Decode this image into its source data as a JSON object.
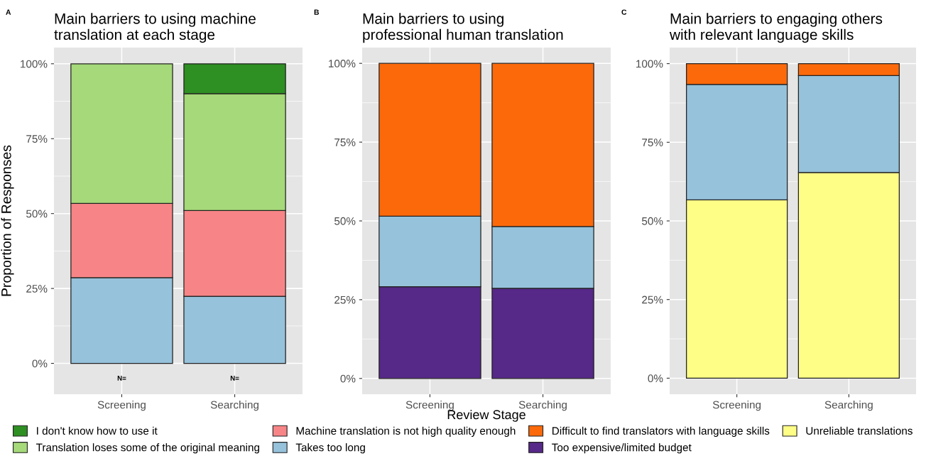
{
  "chart_data": [
    {
      "type": "bar",
      "stacked": true,
      "title": "Main barriers to using machine\ntranslation at each stage",
      "ylabel": "Proportion of Responses",
      "categories": [
        "Screening",
        "Searching"
      ],
      "ylim": [
        -10.3,
        105.4
      ],
      "yticks": [
        {
          "value": 0,
          "label": "0%"
        },
        {
          "value": 25,
          "label": "25%"
        },
        {
          "value": 50,
          "label": "50%"
        },
        {
          "value": 75,
          "label": "75%"
        },
        {
          "value": 100,
          "label": "100%"
        }
      ],
      "grid": true,
      "legend": "bottom",
      "annotations": [
        "A",
        "N=",
        "N="
      ],
      "series": [
        {
          "name": "Takes too long",
          "color": "#96c2db",
          "values": [
            28.6,
            22.4
          ]
        },
        {
          "name": "Machine translation is not high quality enough",
          "color": "#f78587",
          "values": [
            24.8,
            28.6
          ]
        },
        {
          "name": "Translation loses some of the original meaning",
          "color": "#a6d97a",
          "values": [
            46.6,
            39.0
          ]
        },
        {
          "name": "I don't know how to use it",
          "color": "#2e8f22",
          "values": [
            null,
            10.0
          ]
        }
      ]
    },
    {
      "type": "bar",
      "stacked": true,
      "title": "Main barriers to using\nprofessional human translation",
      "xlabel": "Review Stage",
      "categories": [
        "Screening",
        "Searching"
      ],
      "ylim": [
        -5,
        105
      ],
      "yticks": [
        {
          "value": 0,
          "label": "0%"
        },
        {
          "value": 25,
          "label": "25%"
        },
        {
          "value": 50,
          "label": "50%"
        },
        {
          "value": 75,
          "label": "75%"
        },
        {
          "value": 100,
          "label": "100%"
        }
      ],
      "grid": true,
      "legend": "bottom",
      "annotations": [
        "B"
      ],
      "series": [
        {
          "name": "Too expensive/limited budget",
          "color": "#562888",
          "values": [
            29.1,
            28.6
          ]
        },
        {
          "name": "Takes too long",
          "color": "#96c2db",
          "values": [
            22.4,
            19.6
          ]
        },
        {
          "name": "Difficult to find translators with language skills",
          "color": "#fc690a",
          "values": [
            48.5,
            51.8
          ]
        }
      ]
    },
    {
      "type": "bar",
      "stacked": true,
      "title": "Main barriers to engaging others\nwith relevant language skills",
      "categories": [
        "Screening",
        "Searching"
      ],
      "ylim": [
        -5.1,
        105.1
      ],
      "yticks": [
        {
          "value": 0,
          "label": "0%"
        },
        {
          "value": 25,
          "label": "25%"
        },
        {
          "value": 50,
          "label": "50%"
        },
        {
          "value": 75,
          "label": "75%"
        },
        {
          "value": 100,
          "label": "100%"
        }
      ],
      "grid": true,
      "legend": "bottom",
      "annotations": [
        "C"
      ],
      "series": [
        {
          "name": "Unreliable translations",
          "color": "#fefd86",
          "values": [
            56.7,
            65.4
          ]
        },
        {
          "name": "Takes too long",
          "color": "#96c2db",
          "values": [
            36.7,
            30.8
          ]
        },
        {
          "name": "Difficult to find translators with language skills",
          "color": "#fc690a",
          "values": [
            6.6,
            3.8
          ]
        }
      ]
    }
  ]
}
